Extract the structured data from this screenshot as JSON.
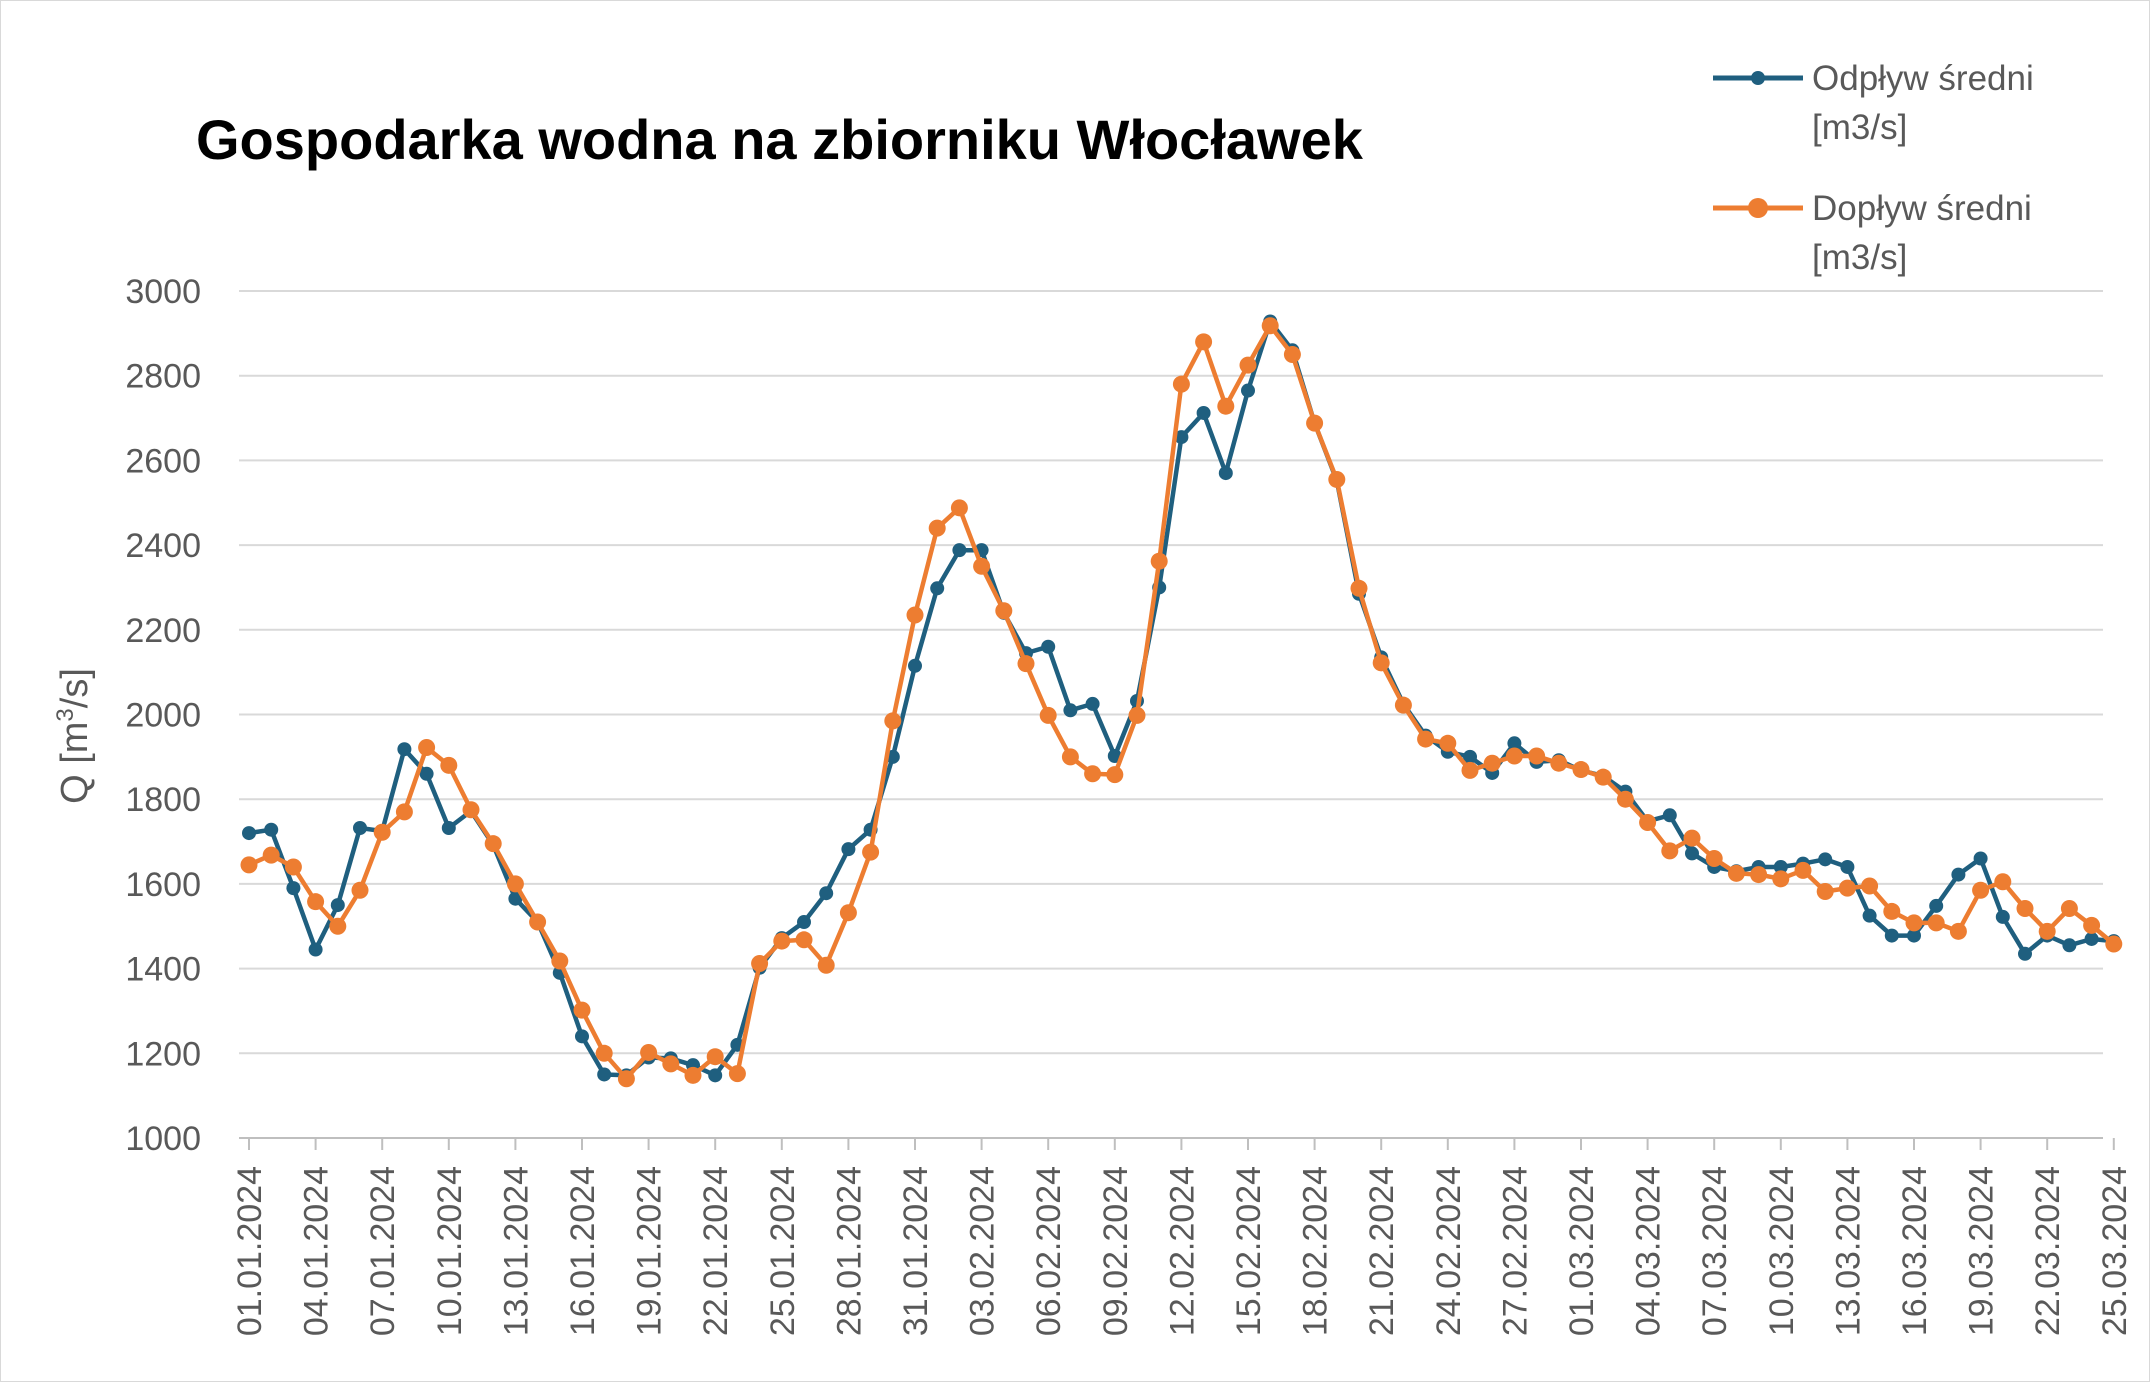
{
  "chart_data": {
    "type": "line",
    "title": "Gospodarka wodna na zbiorniku Włocławek",
    "ylabel": "Q [m³/s]",
    "ylabel_parts": {
      "base": "Q [m",
      "sup": "3",
      "rest": "/s]"
    },
    "xlabel": "",
    "ylim": [
      1000,
      3000
    ],
    "yticks": [
      1000,
      1200,
      1400,
      1600,
      1800,
      2000,
      2200,
      2400,
      2600,
      2800,
      3000
    ],
    "grid": true,
    "legend_position": "top-right",
    "x": [
      "01.01.2024",
      "02.01.2024",
      "03.01.2024",
      "04.01.2024",
      "05.01.2024",
      "06.01.2024",
      "07.01.2024",
      "08.01.2024",
      "09.01.2024",
      "10.01.2024",
      "11.01.2024",
      "12.01.2024",
      "13.01.2024",
      "14.01.2024",
      "15.01.2024",
      "16.01.2024",
      "17.01.2024",
      "18.01.2024",
      "19.01.2024",
      "20.01.2024",
      "21.01.2024",
      "22.01.2024",
      "23.01.2024",
      "24.01.2024",
      "25.01.2024",
      "26.01.2024",
      "27.01.2024",
      "28.01.2024",
      "29.01.2024",
      "30.01.2024",
      "31.01.2024",
      "01.02.2024",
      "02.02.2024",
      "03.02.2024",
      "04.02.2024",
      "05.02.2024",
      "06.02.2024",
      "07.02.2024",
      "08.02.2024",
      "09.02.2024",
      "10.02.2024",
      "11.02.2024",
      "12.02.2024",
      "13.02.2024",
      "14.02.2024",
      "15.02.2024",
      "16.02.2024",
      "17.02.2024",
      "18.02.2024",
      "19.02.2024",
      "20.02.2024",
      "21.02.2024",
      "22.02.2024",
      "23.02.2024",
      "24.02.2024",
      "25.02.2024",
      "26.02.2024",
      "27.02.2024",
      "28.02.2024",
      "29.02.2024",
      "01.03.2024",
      "02.03.2024",
      "03.03.2024",
      "04.03.2024",
      "05.03.2024",
      "06.03.2024",
      "07.03.2024",
      "08.03.2024",
      "09.03.2024",
      "10.03.2024",
      "11.03.2024",
      "12.03.2024",
      "13.03.2024",
      "14.03.2024",
      "15.03.2024",
      "16.03.2024",
      "17.03.2024",
      "18.03.2024",
      "19.03.2024",
      "20.03.2024",
      "21.03.2024",
      "22.03.2024",
      "23.03.2024",
      "24.03.2024",
      "25.03.2024"
    ],
    "tick_labels": [
      "01.01.2024",
      "04.01.2024",
      "07.01.2024",
      "10.01.2024",
      "13.01.2024",
      "16.01.2024",
      "19.01.2024",
      "22.01.2024",
      "25.01.2024",
      "28.01.2024",
      "31.01.2024",
      "03.02.2024",
      "06.02.2024",
      "09.02.2024",
      "12.02.2024",
      "15.02.2024",
      "18.02.2024",
      "21.02.2024",
      "24.02.2024",
      "27.02.2024",
      "01.03.2024",
      "04.03.2024",
      "07.03.2024",
      "10.03.2024",
      "13.03.2024",
      "16.03.2024",
      "19.03.2024",
      "22.03.2024",
      "25.03.2024"
    ],
    "series": [
      {
        "name": "Odpływ średni [m3/s]",
        "legend_lines": [
          "Odpływ średni",
          "[m3/s]"
        ],
        "color": "#1f5f7f",
        "values": [
          1720,
          1728,
          1590,
          1445,
          1550,
          1732,
          1725,
          1918,
          1860,
          1732,
          1772,
          1692,
          1565,
          1510,
          1390,
          1240,
          1150,
          1148,
          1190,
          1188,
          1172,
          1148,
          1220,
          1402,
          1472,
          1510,
          1578,
          1682,
          1728,
          1900,
          2115,
          2298,
          2388,
          2388,
          2240,
          2145,
          2160,
          2010,
          2025,
          1902,
          2032,
          2300,
          2655,
          2712,
          2570,
          2765,
          2928,
          2860,
          2688,
          2552,
          2285,
          2135,
          2025,
          1950,
          1912,
          1900,
          1862,
          1932,
          1888,
          1892,
          1868,
          1855,
          1818,
          1748,
          1762,
          1672,
          1640,
          1630,
          1640,
          1640,
          1648,
          1658,
          1640,
          1525,
          1478,
          1478,
          1548,
          1622,
          1660,
          1522,
          1435,
          1478,
          1455,
          1470,
          1465
        ]
      },
      {
        "name": "Dopływ średni [m3/s]",
        "legend_lines": [
          "Dopływ średni",
          "[m3/s]"
        ],
        "color": "#ed7d31",
        "values": [
          1645,
          1668,
          1640,
          1558,
          1500,
          1585,
          1722,
          1770,
          1922,
          1880,
          1775,
          1695,
          1600,
          1510,
          1418,
          1302,
          1200,
          1140,
          1202,
          1175,
          1148,
          1192,
          1152,
          1412,
          1465,
          1468,
          1408,
          1532,
          1675,
          1985,
          2235,
          2440,
          2488,
          2350,
          2245,
          2120,
          1998,
          1900,
          1860,
          1858,
          1998,
          2362,
          2780,
          2880,
          2728,
          2825,
          2918,
          2850,
          2688,
          2555,
          2298,
          2122,
          2022,
          1942,
          1932,
          1868,
          1885,
          1902,
          1902,
          1885,
          1870,
          1852,
          1800,
          1745,
          1678,
          1708,
          1660,
          1625,
          1622,
          1612,
          1632,
          1582,
          1590,
          1595,
          1535,
          1508,
          1508,
          1488,
          1585,
          1605,
          1542,
          1488,
          1542,
          1502,
          1458
        ]
      }
    ]
  }
}
